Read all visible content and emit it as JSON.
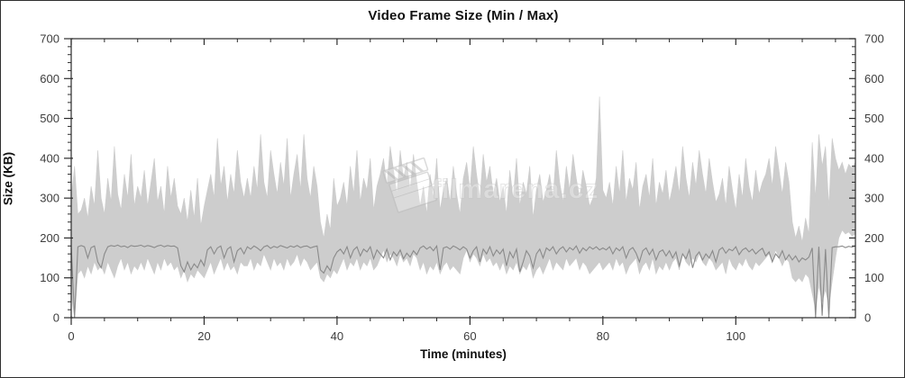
{
  "title": "Video Frame Size (Min / Max)",
  "watermark": {
    "text": "filmarena.cz",
    "icon": "clapperboard-icon"
  },
  "colors": {
    "background": "#ffffff",
    "axis": "#2b2b2b",
    "tick_label": "#3d3d3d",
    "max_band": "#cdcdcd",
    "min_line": "#8a8a8a",
    "watermark": "#c2c2c2"
  },
  "chart_data": {
    "type": "area",
    "title": "Video Frame Size (Min / Max)",
    "xlabel": "Time (minutes)",
    "ylabel": "Size (KB)",
    "xlim": [
      0,
      118
    ],
    "ylim": [
      0,
      700
    ],
    "x_major_ticks": [
      0,
      20,
      40,
      60,
      80,
      100
    ],
    "x_minor_step": 5,
    "y_major_ticks": [
      0,
      100,
      200,
      300,
      400,
      500,
      600,
      700
    ],
    "y_minor_step": 20,
    "grid": false,
    "legend": "none",
    "x_step_minutes": 0.5,
    "series": [
      {
        "name": "Max",
        "style": "filled-band",
        "color": "#cdcdcd",
        "upper": [
          300,
          380,
          260,
          270,
          300,
          250,
          330,
          280,
          420,
          300,
          260,
          350,
          290,
          430,
          310,
          270,
          360,
          300,
          410,
          280,
          330,
          300,
          370,
          280,
          340,
          400,
          290,
          330,
          260,
          380,
          300,
          350,
          280,
          260,
          300,
          240,
          320,
          250,
          350,
          230,
          280,
          320,
          360,
          300,
          450,
          330,
          380,
          290,
          360,
          310,
          420,
          340,
          300,
          350,
          300,
          380,
          320,
          460,
          340,
          300,
          420,
          360,
          310,
          390,
          330,
          450,
          300,
          360,
          410,
          320,
          460,
          350,
          300,
          380,
          330,
          240,
          200,
          260,
          220,
          350,
          280,
          300,
          340,
          280,
          380,
          310,
          420,
          290,
          350,
          320,
          400,
          270,
          330,
          360,
          400,
          330,
          430,
          370,
          310,
          420,
          350,
          390,
          320,
          410,
          340,
          280,
          330,
          260,
          360,
          300,
          400,
          270,
          320,
          350,
          290,
          380,
          310,
          260,
          350,
          390,
          320,
          430,
          360,
          300,
          410,
          340,
          380,
          310,
          350,
          290,
          330,
          260,
          370,
          300,
          400,
          280,
          340,
          310,
          380,
          250,
          320,
          360,
          290,
          320,
          360,
          300,
          420,
          340,
          290,
          380,
          320,
          410,
          350,
          300,
          370,
          330,
          280,
          300,
          350,
          555,
          320,
          300,
          340,
          280,
          380,
          310,
          420,
          290,
          350,
          320,
          390,
          270,
          330,
          360,
          300,
          400,
          280,
          340,
          310,
          370,
          290,
          330,
          380,
          310,
          430,
          350,
          300,
          390,
          330,
          420,
          360,
          310,
          400,
          340,
          290,
          310,
          350,
          280,
          380,
          320,
          270,
          360,
          300,
          400,
          330,
          290,
          370,
          310,
          340,
          360,
          400,
          330,
          430,
          370,
          310,
          390,
          340,
          240,
          200,
          230,
          190,
          250,
          210,
          440,
          300,
          460,
          380,
          430,
          280,
          450,
          400,
          370,
          390,
          360,
          385,
          375,
          390
        ],
        "lower": [
          60,
          0,
          110,
          120,
          100,
          130,
          110,
          140,
          120,
          130,
          110,
          140,
          120,
          100,
          130,
          150,
          120,
          140,
          110,
          130,
          120,
          140,
          120,
          150,
          130,
          110,
          140,
          120,
          150,
          130,
          140,
          120,
          130,
          100,
          120,
          90,
          110,
          100,
          120,
          110,
          100,
          120,
          140,
          110,
          130,
          150,
          120,
          140,
          120,
          130,
          110,
          140,
          130,
          130,
          150,
          120,
          140,
          130,
          160,
          140,
          120,
          150,
          130,
          140,
          120,
          150,
          130,
          140,
          160,
          130,
          150,
          140,
          120,
          130,
          140,
          100,
          90,
          110,
          100,
          120,
          110,
          130,
          150,
          120,
          140,
          130,
          150,
          120,
          140,
          130,
          150,
          120,
          130,
          150,
          170,
          140,
          160,
          150,
          130,
          160,
          140,
          150,
          130,
          160,
          150,
          120,
          140,
          110,
          130,
          120,
          140,
          110,
          130,
          140,
          120,
          130,
          120,
          110,
          150,
          170,
          140,
          160,
          150,
          130,
          160,
          140,
          150,
          130,
          140,
          120,
          140,
          110,
          130,
          120,
          140,
          110,
          130,
          120,
          140,
          100,
          120,
          130,
          110,
          130,
          150,
          120,
          140,
          130,
          120,
          150,
          130,
          140,
          150,
          120,
          140,
          130,
          110,
          120,
          130,
          140,
          120,
          130,
          140,
          120,
          150,
          130,
          140,
          110,
          130,
          140,
          150,
          110,
          130,
          140,
          120,
          150,
          110,
          130,
          120,
          140,
          120,
          140,
          150,
          120,
          160,
          140,
          130,
          150,
          140,
          160,
          140,
          130,
          150,
          140,
          120,
          130,
          140,
          110,
          150,
          130,
          120,
          140,
          130,
          150,
          130,
          120,
          140,
          130,
          140,
          150,
          160,
          140,
          170,
          150,
          130,
          150,
          140,
          100,
          90,
          100,
          90,
          110,
          100,
          60,
          20,
          80,
          40,
          70,
          30,
          90,
          150,
          200,
          220,
          210,
          215,
          205,
          210
        ]
      },
      {
        "name": "Min",
        "style": "line",
        "color": "#8a8a8a",
        "values": [
          180,
          0,
          178,
          181,
          178,
          150,
          176,
          180,
          140,
          125,
          160,
          178,
          181,
          179,
          182,
          178,
          180,
          176,
          181,
          179,
          180,
          182,
          178,
          181,
          179,
          176,
          180,
          182,
          178,
          181,
          179,
          180,
          175,
          130,
          115,
          140,
          120,
          135,
          125,
          145,
          130,
          170,
          178,
          160,
          175,
          180,
          150,
          172,
          178,
          140,
          168,
          175,
          160,
          178,
          172,
          180,
          175,
          168,
          178,
          181,
          174,
          179,
          176,
          181,
          178,
          175,
          180,
          177,
          181,
          176,
          179,
          180,
          175,
          178,
          180,
          120,
          112,
          130,
          118,
          150,
          165,
          172,
          160,
          178,
          150,
          170,
          178,
          155,
          172,
          165,
          178,
          148,
          170,
          160,
          150,
          172,
          145,
          165,
          155,
          170,
          148,
          162,
          152,
          168,
          158,
          175,
          180,
          172,
          178,
          168,
          180,
          120,
          175,
          178,
          172,
          180,
          176,
          170,
          178,
          172,
          150,
          168,
          178,
          140,
          172,
          160,
          178,
          155,
          170,
          160,
          172,
          130,
          165,
          150,
          172,
          115,
          140,
          168,
          155,
          125,
          160,
          172,
          150,
          175,
          168,
          178,
          160,
          172,
          178,
          165,
          176,
          170,
          180,
          162,
          175,
          168,
          178,
          172,
          178,
          170,
          175,
          170,
          178,
          160,
          175,
          168,
          178,
          150,
          170,
          176,
          162,
          140,
          168,
          175,
          158,
          172,
          145,
          165,
          170,
          155,
          168,
          150,
          165,
          130,
          160,
          148,
          170,
          125,
          155,
          165,
          145,
          160,
          150,
          168,
          140,
          170,
          176,
          162,
          172,
          168,
          178,
          158,
          170,
          175,
          165,
          172,
          160,
          168,
          174,
          155,
          165,
          140,
          160,
          150,
          168,
          145,
          158,
          145,
          155,
          140,
          150,
          145,
          152,
          175,
          0,
          178,
          5,
          172,
          0,
          176,
          178,
          178,
          180,
          176,
          179,
          177,
          180
        ]
      }
    ]
  }
}
